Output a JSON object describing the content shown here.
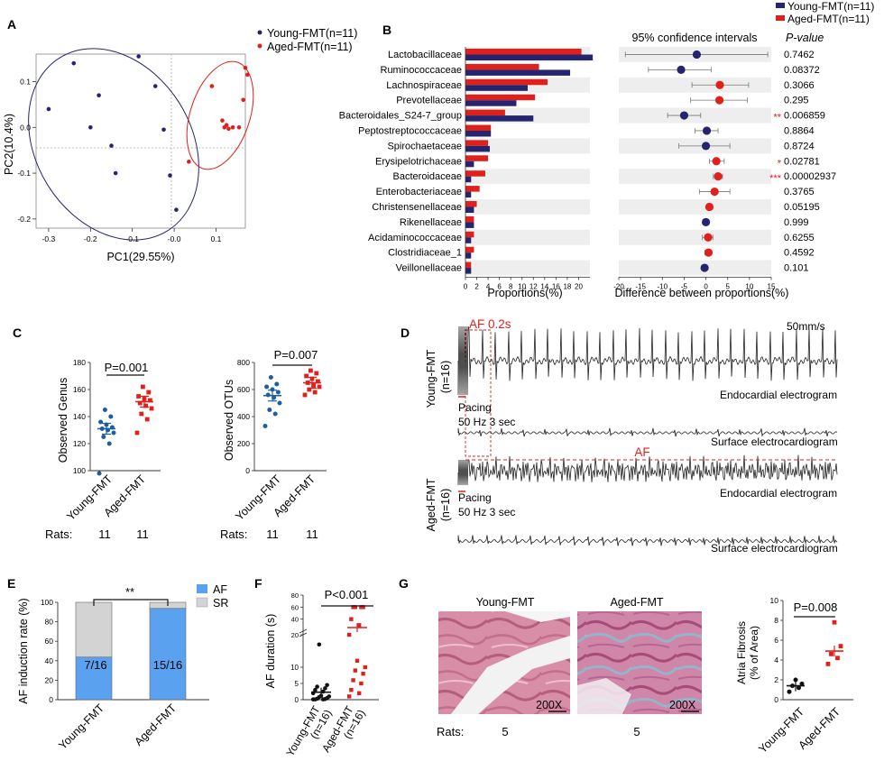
{
  "colors": {
    "young": "#24256e",
    "aged": "#e0201b",
    "af_bar": "#5aa2f0",
    "sr_bar": "#d3d3d3",
    "ellipse_young": "#24256e",
    "ellipse_aged": "#e0201b",
    "hist_young": "#b8727f",
    "hist_aged": "#cf9bb5"
  },
  "panels": {
    "A": "A",
    "B": "B",
    "C": "C",
    "D": "D",
    "E": "E",
    "F": "F",
    "G": "G"
  },
  "panelA": {
    "legend": [
      "Young-FMT(n=11)",
      "Aged-FMT(n=11)"
    ],
    "xlabel": "PC1(29.55%)",
    "ylabel": "PC2(10.4%)",
    "xticks": [
      "-0.3",
      "-0.2",
      "-0.1",
      "-0.0",
      "0.1"
    ],
    "yticks": [
      "0.1",
      "0.0",
      "-0.1",
      "-0.2"
    ]
  },
  "panelB": {
    "legend": [
      "Young-FMT(n=11)",
      "Aged-FMT(n=11)"
    ],
    "ci_title": "95% confidence intervals",
    "pvalue_header": "P-value",
    "xlabel_left": "Proportions(%)",
    "xlabel_right": "Difference between proportions(%)",
    "left_ticks": [
      "0",
      "2",
      "4",
      "6",
      "8",
      "10",
      "12",
      "14",
      "16",
      "18",
      "20"
    ],
    "right_ticks": [
      "-20",
      "-15",
      "-10",
      "-5",
      "0",
      "5",
      "10",
      "15"
    ]
  },
  "panelC": {
    "genus_ylabel": "Observed Genus",
    "genus_p": "P=0.001",
    "genus_yticks": [
      "180",
      "160",
      "140",
      "120",
      "100"
    ],
    "otu_ylabel": "Observed OTUs",
    "otu_p": "P=0.007",
    "otu_yticks": [
      "800",
      "600",
      "400",
      "200",
      "0"
    ],
    "groups": [
      "Young-FMT",
      "Aged-FMT"
    ],
    "rats_label": "Rats:",
    "rats": [
      "11",
      "11",
      "11",
      "11"
    ]
  },
  "panelD": {
    "young_label": "Young-FMT",
    "young_n": "(n=16)",
    "aged_label": "Aged-FMT",
    "aged_n": "(n=16)",
    "af_box": "AF 0.2s",
    "speed": "50mm/s",
    "pacing": "Pacing",
    "pacing_rate": "50 Hz 3 sec",
    "endo": "Endocardial electrogram",
    "surface": "Surface electrocardiogram",
    "af": "AF"
  },
  "panelE": {
    "ylabel": "AF induction rate (%)",
    "yticks": [
      "100",
      "80",
      "60",
      "40",
      "20",
      "0"
    ],
    "legend": [
      "AF",
      "SR"
    ],
    "sig": "**",
    "groups": [
      "Young-FMT",
      "Aged-FMT"
    ],
    "bar_labels": [
      "7/16",
      "15/16"
    ]
  },
  "panelF": {
    "ylabel": "AF duration (s)",
    "p": "P<0.001",
    "yticks_top": [
      "80",
      "60",
      "40",
      "20"
    ],
    "yticks_bottom": [
      "10",
      "5",
      "0"
    ],
    "groups": [
      "Young-FMT",
      "Aged-FMT"
    ],
    "group_n": [
      "(n=16)",
      "(n=16)"
    ]
  },
  "panelG": {
    "titles": [
      "Young-FMT",
      "Aged-FMT"
    ],
    "magnification": "200X",
    "rats_label": "Rats:",
    "rats": [
      "5",
      "5"
    ],
    "ylabel1": "Atria Fibrosis",
    "ylabel2": "(% of Area)",
    "p": "P=0.008",
    "yticks": [
      "10",
      "8",
      "6",
      "4",
      "2",
      "0"
    ],
    "groups": [
      "Young-FMT",
      "Aged-FMT"
    ]
  },
  "chart_data": [
    {
      "type": "scatter",
      "xlabel": "PC1(29.55%)",
      "ylabel": "PC2(10.4%)",
      "xlim": [
        -0.33,
        0.17
      ],
      "ylim": [
        -0.22,
        0.16
      ],
      "series": [
        {
          "name": "Young-FMT(n=11)",
          "points": [
            [
              -0.3,
              0.04
            ],
            [
              -0.24,
              0.14
            ],
            [
              -0.2,
              0.0
            ],
            [
              -0.18,
              0.07
            ],
            [
              -0.15,
              -0.04
            ],
            [
              -0.14,
              -0.1
            ],
            [
              -0.085,
              0.155
            ],
            [
              -0.045,
              0.09
            ],
            [
              -0.025,
              -0.005
            ],
            [
              -0.01,
              -0.105
            ],
            [
              0.005,
              -0.18
            ]
          ]
        },
        {
          "name": "Aged-FMT(n=11)",
          "points": [
            [
              0.09,
              0.09
            ],
            [
              0.115,
              0.015
            ],
            [
              0.12,
              0.0
            ],
            [
              0.125,
              0.005
            ],
            [
              0.13,
              -0.003
            ],
            [
              0.14,
              0.0
            ],
            [
              0.155,
              0.0
            ],
            [
              0.165,
              0.06
            ],
            [
              0.17,
              0.13
            ],
            [
              0.175,
              0.115
            ],
            [
              0.035,
              -0.075
            ]
          ]
        }
      ]
    },
    {
      "type": "bar",
      "title": "Proportions(%)",
      "categories": [
        "Lactobacillaceae",
        "Ruminococcaceae",
        "Lachnospiraceae",
        "Prevotellaceae",
        "Bacteroidales_S24-7_group",
        "Peptostreptococcaceae",
        "Spirochaetaceae",
        "Erysipelotrichaceae",
        "Bacteroidaceae",
        "Enterobacteriaceae",
        "Christensenellaceae",
        "Rikenellaceae",
        "Acidaminococcaceae",
        "Clostridiaceae_1",
        "Veillonellaceae"
      ],
      "xlim": [
        0,
        22
      ],
      "series": [
        {
          "name": "Aged-FMT(n=11)",
          "values": [
            20.5,
            13,
            14.5,
            12.3,
            7,
            4.5,
            4,
            4,
            3.5,
            2.5,
            2,
            1.5,
            1.5,
            1.5,
            1
          ]
        },
        {
          "name": "Young-FMT(n=11)",
          "values": [
            22.5,
            18.5,
            11,
            9,
            12,
            4.5,
            4.3,
            1.5,
            1,
            1,
            1.5,
            1.5,
            1,
            1,
            1
          ]
        }
      ]
    },
    {
      "type": "scatter",
      "title": "95% confidence intervals",
      "xlabel": "Difference between proportions(%)",
      "xlim": [
        -20,
        15
      ],
      "differences": [
        -2.1,
        -5.7,
        3.2,
        3.1,
        -5,
        0.2,
        0,
        2.4,
        2.8,
        2,
        0.8,
        0,
        0.5,
        0.6,
        -0.3
      ],
      "ci_low": [
        -18.5,
        -13.2,
        -3.2,
        -3.5,
        -8.8,
        -2.5,
        -6.2,
        0.8,
        1.7,
        -1.5,
        0.2,
        -0.7,
        -0.8,
        -0.2,
        -0.9
      ],
      "ci_high": [
        14.2,
        1.2,
        9.8,
        9.5,
        -1.2,
        2.8,
        5.5,
        4.2,
        3.8,
        5.5,
        1.5,
        0.7,
        1.6,
        1.3,
        0.3
      ],
      "favoured": [
        "young",
        "young",
        "aged",
        "aged",
        "young",
        "young",
        "young",
        "aged",
        "aged",
        "aged",
        "aged",
        "young",
        "aged",
        "aged",
        "young"
      ],
      "p_values": [
        "0.7462",
        "0.08372",
        "0.3066",
        "0.295",
        "0.006859",
        "0.8864",
        "0.8724",
        "0.02781",
        "0.00002937",
        "0.3765",
        "0.05195",
        "0.999",
        "0.6255",
        "0.4592",
        "0.101"
      ],
      "significance": [
        "",
        "",
        "",
        "",
        "**",
        "",
        "",
        "*",
        "***",
        "",
        "",
        "",
        "",
        "",
        ""
      ]
    },
    {
      "type": "scatter",
      "ylabel": "Observed Genus",
      "ylim": [
        100,
        180
      ],
      "categories": [
        "Young-FMT",
        "Aged-FMT"
      ],
      "series": [
        {
          "name": "Young-FMT",
          "values": [
            98,
            120,
            125,
            128,
            130,
            131,
            132,
            134,
            136,
            140,
            145
          ],
          "mean": 131
        },
        {
          "name": "Aged-FMT",
          "values": [
            128,
            138,
            142,
            146,
            148,
            150,
            152,
            153,
            155,
            158,
            162
          ],
          "mean": 151
        }
      ]
    },
    {
      "type": "scatter",
      "ylabel": "Observed OTUs",
      "ylim": [
        0,
        800
      ],
      "categories": [
        "Young-FMT",
        "Aged-FMT"
      ],
      "series": [
        {
          "name": "Young-FMT",
          "values": [
            330,
            420,
            450,
            500,
            540,
            560,
            580,
            600,
            620,
            640,
            690
          ],
          "mean": 555
        },
        {
          "name": "Aged-FMT",
          "values": [
            560,
            580,
            600,
            620,
            630,
            650,
            660,
            680,
            700,
            720,
            740
          ],
          "mean": 650
        }
      ]
    },
    {
      "type": "bar",
      "ylabel": "AF induction rate (%)",
      "ylim": [
        0,
        100
      ],
      "categories": [
        "Young-FMT",
        "Aged-FMT"
      ],
      "series": [
        {
          "name": "AF",
          "values": [
            43.75,
            93.75
          ]
        },
        {
          "name": "SR",
          "values": [
            56.25,
            6.25
          ]
        }
      ]
    },
    {
      "type": "scatter",
      "ylabel": "AF duration (s)",
      "categories": [
        "Young-FMT",
        "Aged-FMT"
      ],
      "series": [
        {
          "name": "Young-FMT",
          "values": [
            0.1,
            0.1,
            0.1,
            0.2,
            0.3,
            0.5,
            0.8,
            1,
            1.2,
            2,
            2.5,
            3,
            3.5,
            4,
            4.5,
            17
          ],
          "mean": 2.3
        },
        {
          "name": "Aged-FMT",
          "values": [
            1,
            2,
            3,
            5,
            6,
            8,
            9,
            10,
            12,
            20,
            30,
            40,
            60,
            60,
            60,
            60
          ],
          "mean": 26
        }
      ]
    },
    {
      "type": "scatter",
      "ylabel": "Atria Fibrosis (% of Area)",
      "ylim": [
        0,
        10
      ],
      "categories": [
        "Young-FMT",
        "Aged-FMT"
      ],
      "series": [
        {
          "name": "Young-FMT",
          "values": [
            0.8,
            1.2,
            1.4,
            1.6,
            2.0
          ],
          "mean": 1.4
        },
        {
          "name": "Aged-FMT",
          "values": [
            3.6,
            4.2,
            4.6,
            5.4,
            7.8
          ],
          "mean": 4.9
        }
      ]
    }
  ]
}
